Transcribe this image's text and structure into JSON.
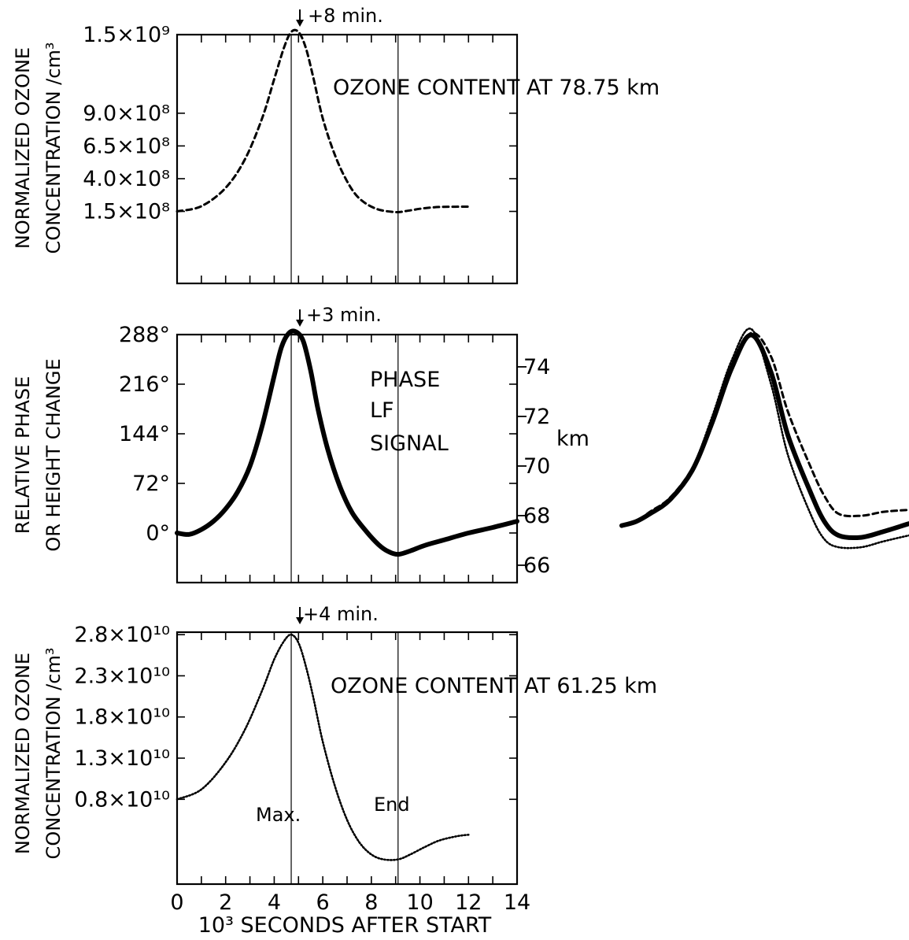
{
  "x_axis": {
    "label": "10³  SECONDS AFTER START",
    "ticks": [
      "0",
      "2",
      "4",
      "6",
      "8",
      "10",
      "12",
      "14"
    ],
    "range": [
      0,
      14
    ]
  },
  "chart_data": [
    {
      "type": "line",
      "title": "OZONE CONTENT AT 78.75 km",
      "ylabel": [
        "NORMALIZED OZONE",
        "CONCENTRATION /cm³"
      ],
      "yticks": [
        {
          "label": "1.5×10⁹",
          "value": 1500000000.0
        },
        {
          "label": "9.0×10⁸",
          "value": 900000000.0
        },
        {
          "label": "6.5×10⁸",
          "value": 650000000.0
        },
        {
          "label": "4.0×10⁸",
          "value": 400000000.0
        },
        {
          "label": "1.5×10⁸",
          "value": 150000000.0
        }
      ],
      "ylim": [
        -400000000.0,
        1500000000.0
      ],
      "xlim": [
        0,
        14
      ],
      "peak_annotation": "+8 min.",
      "markers": [
        4.7,
        9.1
      ],
      "series": [
        {
          "style": "dashed",
          "x": [
            0,
            1,
            2,
            2.8,
            3.5,
            4.0,
            4.4,
            4.7,
            5.0,
            5.3,
            5.6,
            6.0,
            6.5,
            7.0,
            7.5,
            8.2,
            9.0,
            9.5,
            10.0,
            10.5,
            11.0,
            12.0
          ],
          "y": [
            150000000.0,
            190000000.0,
            330000000.0,
            550000000.0,
            860000000.0,
            1160000000.0,
            1400000000.0,
            1520000000.0,
            1520000000.0,
            1400000000.0,
            1180000000.0,
            860000000.0,
            580000000.0,
            380000000.0,
            250000000.0,
            170000000.0,
            145000000.0,
            155000000.0,
            170000000.0,
            180000000.0,
            185000000.0,
            186000000.0
          ]
        }
      ]
    },
    {
      "type": "line",
      "title": "PHASE LF SIGNAL",
      "title_lines": [
        "PHASE",
        "LF",
        "SIGNAL"
      ],
      "ylabel": [
        "RELATIVE PHASE",
        "OR HEIGHT CHANGE"
      ],
      "yticks": [
        {
          "label": "288°",
          "value": 288
        },
        {
          "label": "216°",
          "value": 216
        },
        {
          "label": "144°",
          "value": 144
        },
        {
          "label": "72°",
          "value": 72
        },
        {
          "label": "0°",
          "value": 0
        }
      ],
      "ylim": [
        -72,
        288
      ],
      "xlim": [
        0,
        14
      ],
      "y2label": "km",
      "y2ticks": [
        {
          "label": "74",
          "value": 74
        },
        {
          "label": "72",
          "value": 72
        },
        {
          "label": "70",
          "value": 70
        },
        {
          "label": "68",
          "value": 68
        },
        {
          "label": "66",
          "value": 66
        }
      ],
      "y2lim": [
        65.3,
        75.3
      ],
      "peak_annotation": "+3 min.",
      "markers": [
        4.7,
        9.1
      ],
      "series": [
        {
          "style": "solid",
          "x": [
            0,
            0.5,
            1.0,
            1.5,
            2.0,
            2.5,
            3.0,
            3.5,
            4.0,
            4.3,
            4.6,
            4.9,
            5.2,
            5.5,
            5.8,
            6.2,
            6.7,
            7.2,
            7.8,
            8.3,
            8.7,
            9.1,
            9.6,
            10.2,
            11.0,
            12.0,
            13.0,
            14.0
          ],
          "y": [
            0,
            -2,
            5,
            17,
            35,
            60,
            97,
            155,
            228,
            270,
            290,
            292,
            278,
            236,
            180,
            122,
            68,
            30,
            2,
            -17,
            -27,
            -31,
            -26,
            -18,
            -10,
            0,
            8,
            17
          ]
        }
      ]
    },
    {
      "type": "line",
      "title": "OZONE CONTENT AT 61.25 km",
      "ylabel": [
        "NORMALIZED OZONE",
        "CONCENTRATION /cm³"
      ],
      "yticks": [
        {
          "label": "2.8×10¹⁰",
          "value": 28000000000.0
        },
        {
          "label": "2.3×10¹⁰",
          "value": 23000000000.0
        },
        {
          "label": "1.8×10¹⁰",
          "value": 18000000000.0
        },
        {
          "label": "1.3×10¹⁰",
          "value": 13000000000.0
        },
        {
          "label": "0.8×10¹⁰",
          "value": 8000000000.0
        }
      ],
      "ylim": [
        -2300000000.0,
        28300000000.0
      ],
      "xlim": [
        0,
        14
      ],
      "peak_annotation": "+4 min.",
      "markers": [
        4.7,
        9.1
      ],
      "marker_labels": [
        "Max.",
        "End"
      ],
      "series": [
        {
          "style": "dotted",
          "x": [
            0,
            1.0,
            2.0,
            2.8,
            3.5,
            4.0,
            4.4,
            4.7,
            5.0,
            5.3,
            5.6,
            6.0,
            6.5,
            7.0,
            7.5,
            8.0,
            8.5,
            9.1,
            9.6,
            10.2,
            10.8,
            11.5,
            12.0
          ],
          "y": [
            8000000000.0,
            9200000000.0,
            12500000000.0,
            16500000000.0,
            21200000000.0,
            25000000000.0,
            27200000000.0,
            28000000000.0,
            27000000000.0,
            24200000000.0,
            20500000000.0,
            15000000000.0,
            9600000000.0,
            5500000000.0,
            2800000000.0,
            1300000000.0,
            700000000.0,
            700000000.0,
            1300000000.0,
            2200000000.0,
            3000000000.0,
            3500000000.0,
            3700000000.0
          ]
        }
      ]
    },
    {
      "type": "line",
      "note": "overlay of the three curves",
      "xlim": [
        3.3,
        13.5
      ],
      "ylim": [
        -0.25,
        1.0
      ],
      "series": [
        {
          "style": "dashed",
          "x": [
            3.3,
            3.8,
            4.3,
            5.0,
            5.8,
            6.5,
            7.2,
            7.9,
            8.6,
            9.2,
            10.0,
            10.5,
            11.0,
            11.8,
            12.6,
            13.5
          ],
          "y": [
            0.0,
            0.02,
            0.07,
            0.14,
            0.29,
            0.52,
            0.8,
            0.98,
            0.86,
            0.58,
            0.3,
            0.15,
            0.06,
            0.05,
            0.07,
            0.08
          ]
        },
        {
          "style": "solid",
          "x": [
            3.3,
            3.8,
            4.3,
            5.0,
            5.8,
            6.5,
            7.2,
            7.9,
            8.6,
            9.2,
            10.0,
            10.5,
            11.0,
            11.8,
            12.6,
            13.5
          ],
          "y": [
            0.0,
            0.02,
            0.06,
            0.13,
            0.28,
            0.52,
            0.8,
            0.97,
            0.78,
            0.46,
            0.17,
            0.02,
            -0.05,
            -0.06,
            -0.03,
            0.01
          ]
        },
        {
          "style": "dotted",
          "x": [
            3.3,
            3.8,
            4.3,
            5.0,
            5.8,
            6.5,
            7.2,
            7.9,
            8.6,
            9.2,
            10.0,
            10.5,
            11.0,
            11.8,
            12.6,
            13.5
          ],
          "y": [
            0.0,
            0.02,
            0.06,
            0.13,
            0.29,
            0.55,
            0.84,
            1.0,
            0.72,
            0.36,
            0.06,
            -0.07,
            -0.11,
            -0.11,
            -0.08,
            -0.05
          ]
        }
      ]
    }
  ]
}
